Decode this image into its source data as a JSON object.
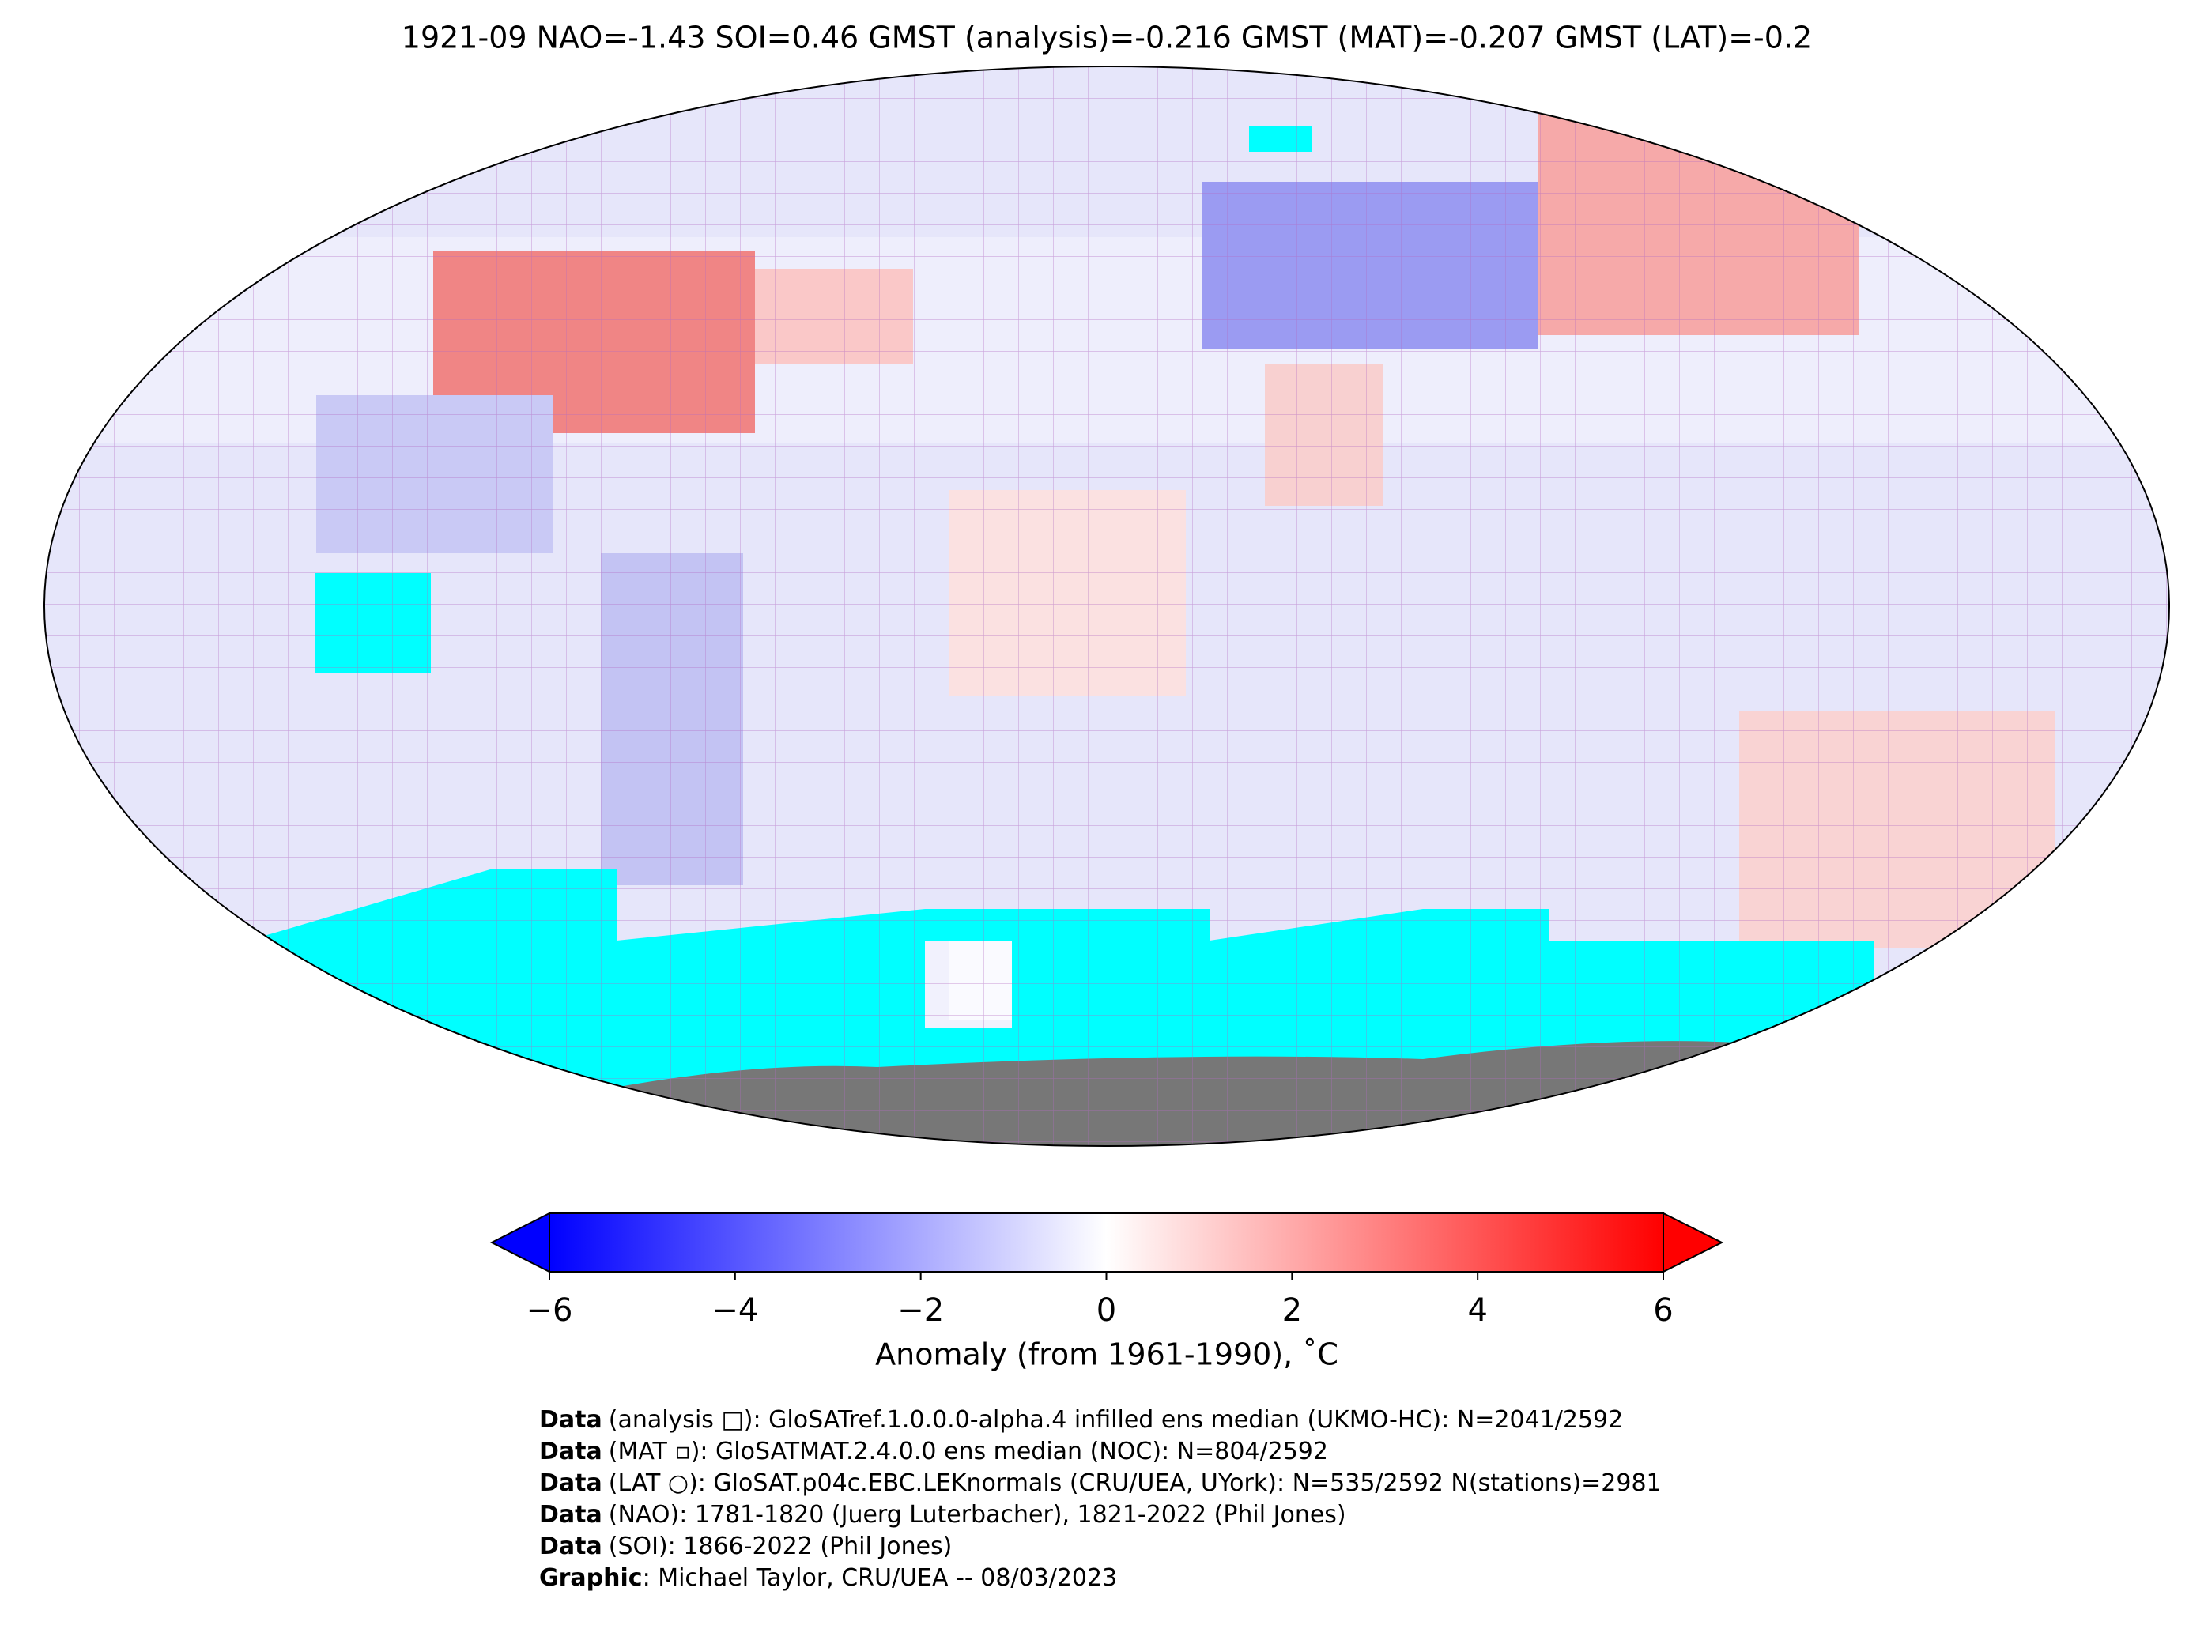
{
  "header": {
    "title": "1921-09 NAO=-1.43 SOI=0.46 GMST (analysis)=-0.216 GMST (MAT)=-0.207 GMST (LAT)=-0.2"
  },
  "colorbar": {
    "range": [
      -6,
      6
    ],
    "ticks": [
      {
        "value": -6,
        "label": "−6"
      },
      {
        "value": -4,
        "label": "−4"
      },
      {
        "value": -2,
        "label": "−2"
      },
      0,
      2,
      4,
      6
    ],
    "label": "Anomaly (from 1961-1990), ˚C"
  },
  "credits": [
    {
      "lead": "Data",
      "text": "(analysis □): GloSATref.1.0.0.0-alpha.4 infilled ens median (UKMO-HC): N=2041/2592"
    },
    {
      "lead": "Data",
      "text": "(MAT ▫): GloSATMAT.2.4.0.0 ens median (NOC): N=804/2592"
    },
    {
      "lead": "Data",
      "text": "(LAT ○): GloSAT.p04c.EBC.LEKnormals (CRU/UEA, UYork): N=535/2592 N(stations)=2981"
    },
    {
      "lead": "Data",
      "text": "(NAO): 1781-1820 (Juerg Luterbacher), 1821-2022 (Phil Jones)"
    },
    {
      "lead": "Data",
      "text": "(SOI): 1866-2022 (Phil Jones)"
    },
    {
      "lead": "Graphic",
      "text": ": Michael Taylor, CRU/UEA -- 08/03/2023"
    }
  ]
}
